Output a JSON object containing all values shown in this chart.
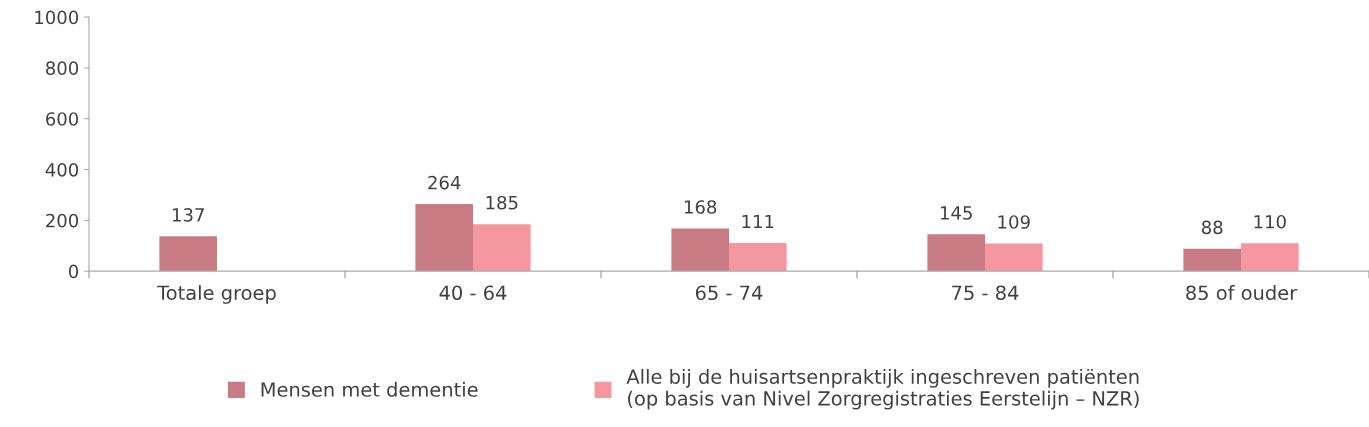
{
  "chart_data": {
    "type": "bar",
    "categories": [
      "Totale groep",
      "40 - 64",
      "65 - 74",
      "75 - 84",
      "85 of ouder"
    ],
    "series": [
      {
        "name": "Mensen met dementie",
        "color": "#c97b84",
        "values": [
          137,
          264,
          168,
          145,
          88
        ],
        "value_labels": [
          "137",
          "264",
          "168",
          "145",
          "88"
        ]
      },
      {
        "name": "Alle bij de huisartsenpraktijk ingeschreven patiënten\n(op basis van Nivel Zorgregistraties Eerstelijn – NZR)",
        "color": "#f4979f",
        "values": [
          null,
          185,
          111,
          109,
          110
        ],
        "value_labels": [
          null,
          "185",
          "111",
          "109",
          "110"
        ]
      }
    ],
    "ylim": [
      0,
      1000
    ],
    "yticks": [
      0,
      200,
      400,
      600,
      800,
      1000
    ],
    "grid": false,
    "legend": "bottom"
  }
}
